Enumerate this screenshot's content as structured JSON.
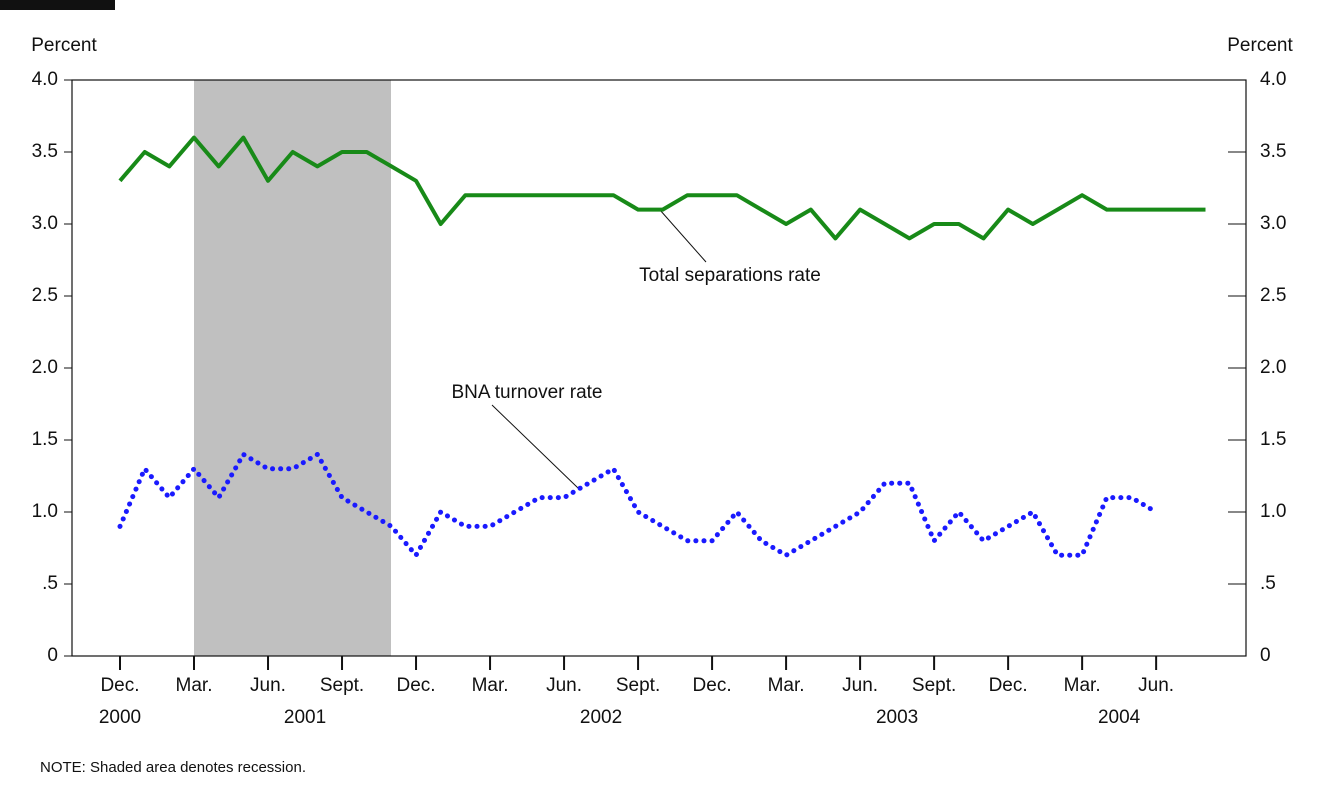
{
  "chart_data": {
    "type": "line",
    "y_label": "Percent",
    "y2_label": "Percent",
    "categories": [
      "Dec.",
      null,
      null,
      "Mar.",
      null,
      null,
      "Jun.",
      null,
      null,
      "Sept.",
      null,
      null,
      "Dec.",
      null,
      null,
      "Mar.",
      null,
      null,
      "Jun.",
      null,
      null,
      "Sept.",
      null,
      null,
      "Dec.",
      null,
      null,
      "Mar.",
      null,
      null,
      "Jun.",
      null,
      null,
      "Sept.",
      null,
      null,
      "Dec.",
      null,
      null,
      "Mar.",
      null,
      null,
      "Jun.",
      null,
      null
    ],
    "years": [
      "2000",
      "2001",
      "2002",
      "2003",
      "2004"
    ],
    "series": [
      {
        "name": "Total separations rate",
        "color": "#188a18",
        "style": "solid",
        "values": [
          3.3,
          3.5,
          3.4,
          3.6,
          3.4,
          3.6,
          3.3,
          3.5,
          3.4,
          3.5,
          3.5,
          3.4,
          3.3,
          3.0,
          3.2,
          3.2,
          3.2,
          3.2,
          3.2,
          3.2,
          3.2,
          3.1,
          3.1,
          3.2,
          3.2,
          3.2,
          3.1,
          3.0,
          3.1,
          2.9,
          3.1,
          3.0,
          2.9,
          3.0,
          3.0,
          2.9,
          3.1,
          3.0,
          3.1,
          3.2,
          3.1,
          3.1,
          3.1,
          3.1,
          3.1
        ]
      },
      {
        "name": "BNA turnover rate",
        "color": "#1a1aff",
        "style": "dotted",
        "values": [
          0.9,
          1.3,
          1.1,
          1.3,
          1.1,
          1.4,
          1.3,
          1.3,
          1.4,
          1.1,
          1.0,
          0.9,
          0.7,
          1.0,
          0.9,
          0.9,
          1.0,
          1.1,
          1.1,
          1.2,
          1.3,
          1.0,
          0.9,
          0.8,
          0.8,
          1.0,
          0.8,
          0.7,
          0.8,
          0.9,
          1.0,
          1.2,
          1.2,
          0.8,
          1.0,
          0.8,
          0.9,
          1.0,
          0.7,
          0.7,
          1.1,
          1.1,
          1.0,
          null,
          null
        ]
      }
    ],
    "ylim": [
      0,
      4
    ],
    "yticks": [
      0,
      {
        "value": 0.5,
        "label": ".5"
      },
      {
        "value": 1,
        "label": "1.0"
      },
      {
        "value": 1.5,
        "label": "1.5"
      },
      {
        "value": 2,
        "label": "2.0"
      },
      {
        "value": 2.5,
        "label": "2.5"
      },
      {
        "value": 3,
        "label": "3.0"
      },
      {
        "value": 3.5,
        "label": "3.5"
      },
      {
        "value": 4,
        "label": "4.0"
      }
    ],
    "y2lim": [
      0,
      4
    ],
    "y2ticks": [
      0,
      {
        "value": 0.5,
        "label": ".5"
      },
      {
        "value": 1,
        "label": "1.0"
      },
      {
        "value": 1.5,
        "label": "1.5"
      },
      {
        "value": 2,
        "label": "2.0"
      },
      {
        "value": 2.5,
        "label": "2.5"
      },
      {
        "value": 3,
        "label": "3.0"
      },
      {
        "value": 3.5,
        "label": "3.5"
      },
      {
        "value": 4,
        "label": "4.0"
      }
    ],
    "note": "NOTE:  Shaded area denotes recession."
  }
}
